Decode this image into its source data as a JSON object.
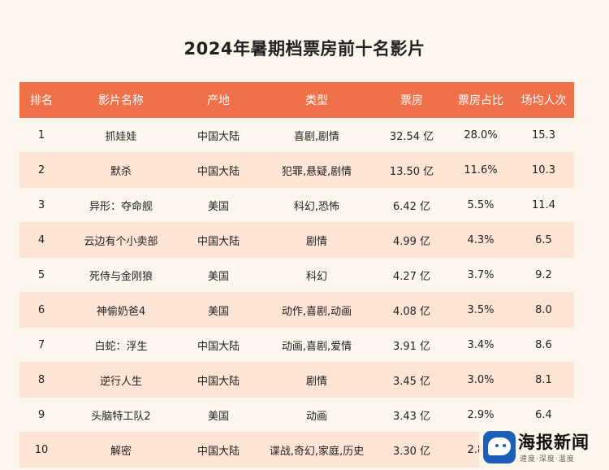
{
  "title": "2024年暑期档票房前十名影片",
  "table": {
    "headers": [
      "排名",
      "影片名称",
      "产地",
      "类型",
      "票房",
      "票房占比",
      "场均人次"
    ],
    "rows": [
      [
        "1",
        "抓娃娃",
        "中国大陆",
        "喜剧,剧情",
        "32.54 亿",
        "28.0%",
        "15.3"
      ],
      [
        "2",
        "默杀",
        "中国大陆",
        "犯罪,悬疑,剧情",
        "13.50 亿",
        "11.6%",
        "10.3"
      ],
      [
        "3",
        "异形：夺命舰",
        "美国",
        "科幻,恐怖",
        "6.42 亿",
        "5.5%",
        "11.4"
      ],
      [
        "4",
        "云边有个小卖部",
        "中国大陆",
        "剧情",
        "4.99 亿",
        "4.3%",
        "6.5"
      ],
      [
        "5",
        "死侍与金刚狼",
        "美国",
        "科幻",
        "4.27 亿",
        "3.7%",
        "9.2"
      ],
      [
        "6",
        "神偷奶爸4",
        "美国",
        "动作,喜剧,动画",
        "4.08 亿",
        "3.5%",
        "8.0"
      ],
      [
        "7",
        "白蛇：浮生",
        "中国大陆",
        "动画,喜剧,爱情",
        "3.91 亿",
        "3.4%",
        "8.6"
      ],
      [
        "8",
        "逆行人生",
        "中国大陆",
        "剧情",
        "3.45 亿",
        "3.0%",
        "8.1"
      ],
      [
        "9",
        "头脑特工队2",
        "美国",
        "动画",
        "3.43 亿",
        "2.9%",
        "6.4"
      ],
      [
        "10",
        "解密",
        "中国大陆",
        "谍战,奇幻,家庭,历史",
        "3.30 亿",
        "2.8%",
        ""
      ]
    ]
  },
  "watermark": {
    "name": "海报新闻",
    "tagline": "速度·深度·温度"
  },
  "colors": {
    "header_bg": "#f0704a",
    "row_alt_bg": "#fde4d4",
    "page_bg": "#fdf6ee"
  }
}
